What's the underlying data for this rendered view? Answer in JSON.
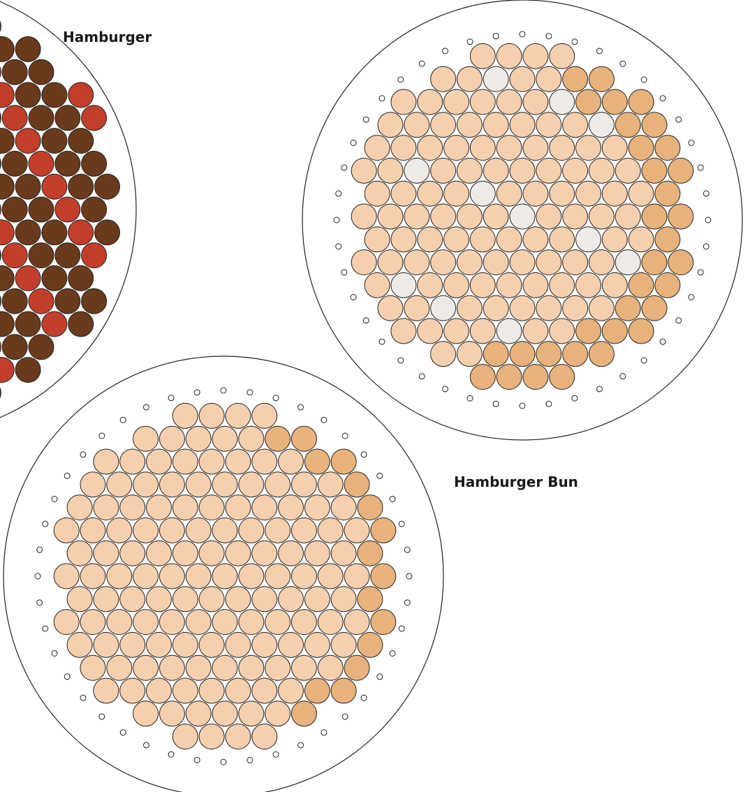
{
  "patterns": [
    {
      "label": "Hamburger"
    },
    {
      "label": "Hamburger Bun"
    }
  ]
}
